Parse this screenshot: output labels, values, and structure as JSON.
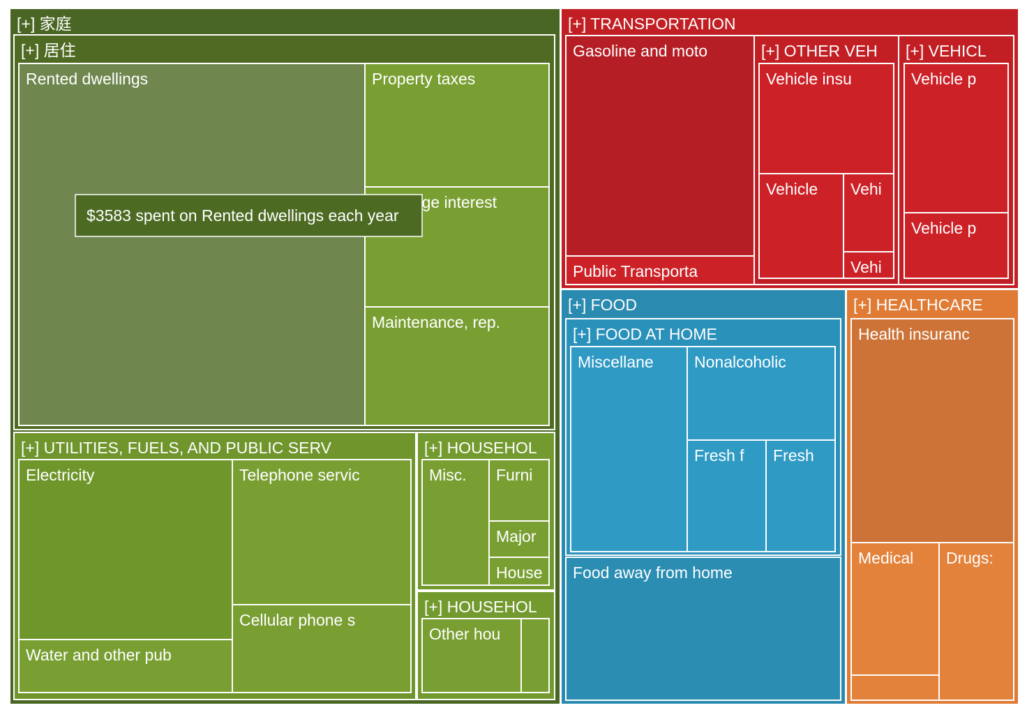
{
  "chart_data": {
    "type": "treemap",
    "groups": [
      {
        "label": "[+] 家庭",
        "color": "#4a6624",
        "children": [
          {
            "label": "[+] 居住",
            "color": "#4f6b23",
            "children": [
              {
                "label": "Rented dwellings",
                "color": "#6f874f",
                "highlighted": true
              },
              {
                "label": "Property taxes",
                "color": "#799f33"
              },
              {
                "label": "Mortgage interest",
                "color": "#799f33"
              },
              {
                "label": "Maintenance, rep.",
                "color": "#799f33"
              }
            ]
          },
          {
            "label": "[+] UTILITIES, FUELS, AND PUBLIC SERV",
            "color": "#6f952c",
            "children": [
              {
                "label": "Electricity",
                "color": "#6f962b"
              },
              {
                "label": "Water and other pub",
                "color": "#799f33"
              },
              {
                "label": "Telephone servic",
                "color": "#799f33"
              },
              {
                "label": "Cellular phone s",
                "color": "#799f33"
              }
            ]
          },
          {
            "label": "[+] HOUSEHOL",
            "color": "#739a2f",
            "children": [
              {
                "label": "Misc.",
                "color": "#799f33"
              },
              {
                "label": "Furni",
                "color": "#799f33"
              },
              {
                "label": "Major",
                "color": "#799f33"
              },
              {
                "label": "House",
                "color": "#799f33"
              }
            ]
          },
          {
            "label": "[+] HOUSEHOL",
            "color": "#739a2f",
            "children": [
              {
                "label": "Other hou",
                "color": "#799f33"
              },
              {
                "label": "",
                "color": "#799f33"
              }
            ]
          }
        ]
      },
      {
        "label": "[+] TRANSPORTATION",
        "color": "#c11f24",
        "children": [
          {
            "label": "Gasoline and moto",
            "color": "#b41e24"
          },
          {
            "label": "Public Transporta",
            "color": "#cc2127"
          },
          {
            "label": "[+] OTHER VEH",
            "color": "#c11f24",
            "children": [
              {
                "label": "Vehicle insu",
                "color": "#cc2127"
              },
              {
                "label": "Vehicle",
                "color": "#cc2127"
              },
              {
                "label": "Vehi",
                "color": "#cc2127"
              },
              {
                "label": "Vehi",
                "color": "#cc2127"
              }
            ]
          },
          {
            "label": "[+] VEHICL",
            "color": "#c11f24",
            "children": [
              {
                "label": "Vehicle p",
                "color": "#cc2127"
              },
              {
                "label": "Vehicle p",
                "color": "#cc2127"
              }
            ]
          }
        ]
      },
      {
        "label": "[+] FOOD",
        "color": "#2a8ab0",
        "children": [
          {
            "label": "[+] FOOD AT HOME",
            "color": "#2a91bb",
            "children": [
              {
                "label": "Miscellane",
                "color": "#2f9ac4"
              },
              {
                "label": "Nonalcoholic",
                "color": "#2f9ac4"
              },
              {
                "label": "Fresh f",
                "color": "#2f9ac4"
              },
              {
                "label": "Fresh",
                "color": "#2f9ac4"
              }
            ]
          },
          {
            "label": "Food away from home",
            "color": "#2b8db2"
          }
        ]
      },
      {
        "label": "[+] HEALTHCARE",
        "color": "#df7b35",
        "children": [
          {
            "label": "Health insuranc",
            "color": "#cd7337"
          },
          {
            "label": "Medical",
            "color": "#e3823b"
          },
          {
            "label": "Drugs:",
            "color": "#e3823b"
          },
          {
            "label": "",
            "color": "#e3823b"
          }
        ]
      }
    ],
    "tooltip": {
      "target": "Rented dwellings",
      "value": 3583,
      "text": "$3583 spent on Rented dwellings each year"
    }
  }
}
